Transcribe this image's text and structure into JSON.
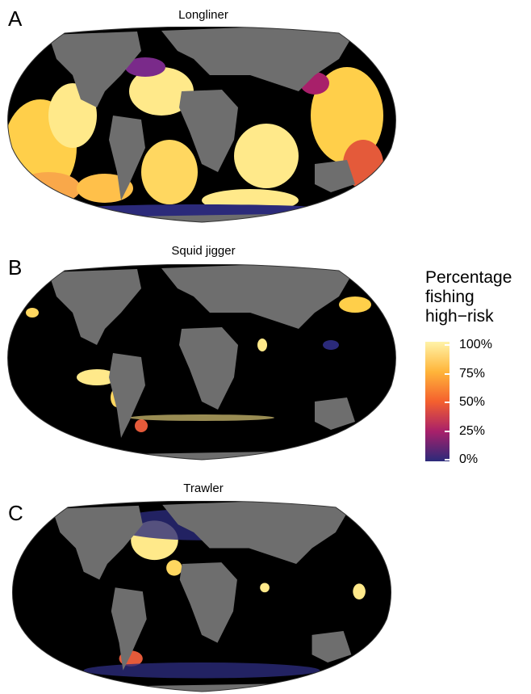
{
  "panels": [
    {
      "letter": "A",
      "title": "Longliner"
    },
    {
      "letter": "B",
      "title": "Squid jigger"
    },
    {
      "letter": "C",
      "title": "Trawler"
    }
  ],
  "legend": {
    "title_lines": [
      "Percentage",
      "fishing",
      "high−risk"
    ],
    "labels": [
      "100%",
      "75%",
      "50%",
      "25%",
      "0%"
    ],
    "colors": [
      "#fff3a8",
      "#ffb53a",
      "#f4602e",
      "#a8206a",
      "#2b2a7a"
    ]
  },
  "colors": {
    "ocean": "#000000",
    "land": "#6e6e6e",
    "low": "#2b2a7a",
    "high": "#fff3a8"
  }
}
